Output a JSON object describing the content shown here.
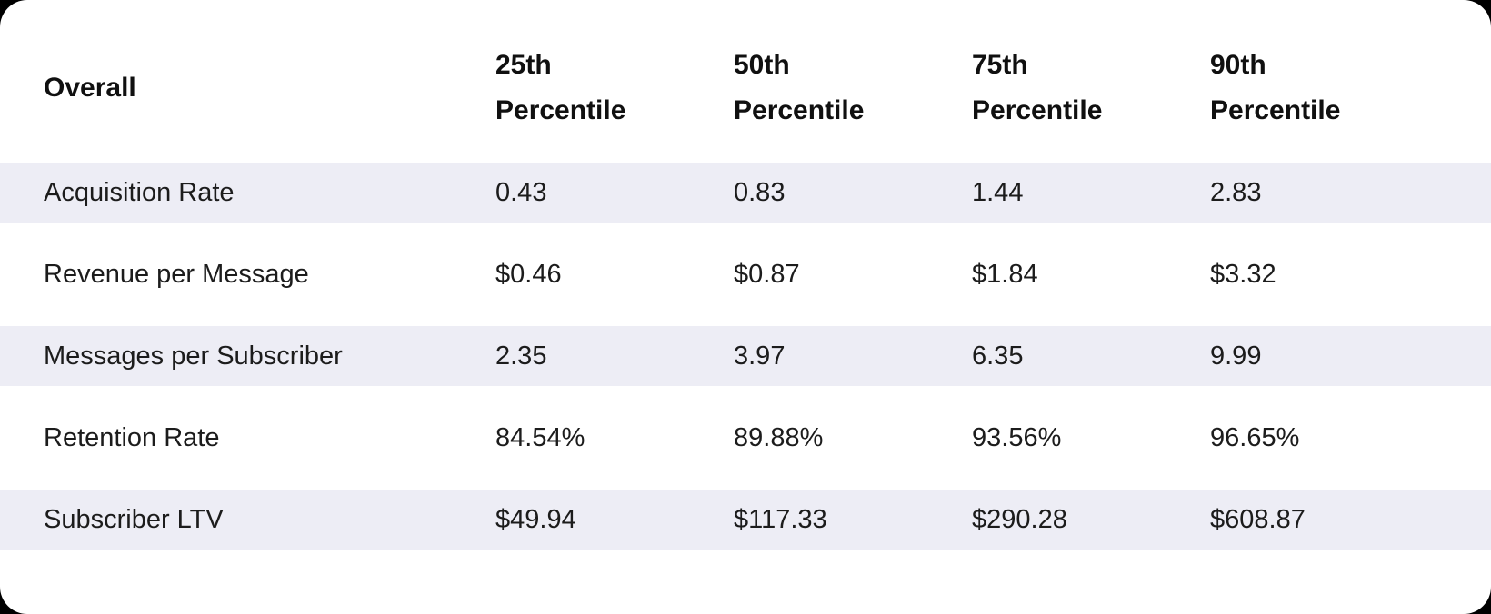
{
  "card": {
    "page_background": "#000000",
    "card_background": "#ffffff",
    "stripe_color": "#EDEDF5",
    "text_color": "#1c1c1c",
    "header_text_color": "#101010"
  },
  "table": {
    "columns": [
      "Overall",
      "25th Percentile",
      "50th Percentile",
      "75th Percentile",
      "90th Percentile"
    ],
    "rows": [
      {
        "label": "Acquisition Rate",
        "values": [
          "0.43",
          "0.83",
          "1.44",
          "2.83"
        ]
      },
      {
        "label": "Revenue per Message",
        "values": [
          "$0.46",
          "$0.87",
          "$1.84",
          "$3.32"
        ]
      },
      {
        "label": "Messages per Subscriber",
        "values": [
          "2.35",
          "3.97",
          "6.35",
          "9.99"
        ]
      },
      {
        "label": "Retention Rate",
        "values": [
          "84.54%",
          "89.88%",
          "93.56%",
          "96.65%"
        ]
      },
      {
        "label": "Subscriber LTV",
        "values": [
          "$49.94",
          "$117.33",
          "$290.28",
          "$608.87"
        ]
      }
    ]
  },
  "chart_data": {
    "type": "table",
    "title": "Overall",
    "columns": [
      "Overall",
      "25th Percentile",
      "50th Percentile",
      "75th Percentile",
      "90th Percentile"
    ],
    "rows": [
      [
        "Acquisition Rate",
        "0.43",
        "0.83",
        "1.44",
        "2.83"
      ],
      [
        "Revenue per Message",
        "$0.46",
        "$0.87",
        "$1.84",
        "$3.32"
      ],
      [
        "Messages per Subscriber",
        "2.35",
        "3.97",
        "6.35",
        "9.99"
      ],
      [
        "Retention Rate",
        "84.54%",
        "89.88%",
        "93.56%",
        "96.65%"
      ],
      [
        "Subscriber LTV",
        "$49.94",
        "$117.33",
        "$290.28",
        "$608.87"
      ]
    ],
    "layout": {
      "striped_rows": [
        0,
        2,
        4
      ],
      "stripe_color": "#EDEDF5",
      "card_corner_radius_px": 30,
      "background": "#000000"
    }
  }
}
